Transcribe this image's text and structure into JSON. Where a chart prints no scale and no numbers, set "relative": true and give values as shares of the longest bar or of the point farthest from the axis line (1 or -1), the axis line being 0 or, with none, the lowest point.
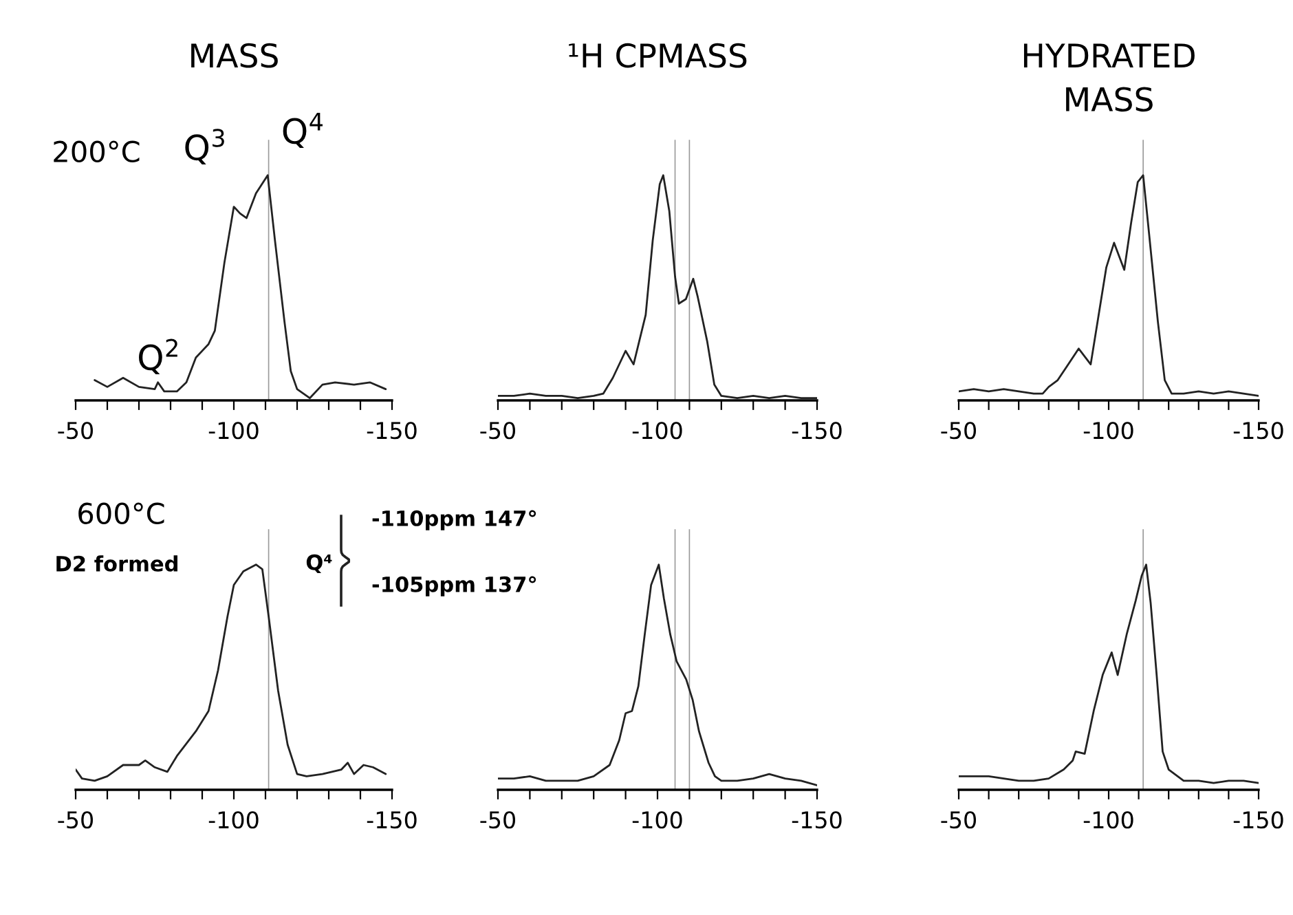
{
  "chart_data": [
    {
      "type": "line",
      "title": "MASS",
      "relative": true,
      "xlim": [
        -50,
        -150
      ],
      "tick_labels": "x",
      "xticks": [
        -50,
        {
          "value": -60,
          "label": null
        },
        {
          "value": -70,
          "label": null
        },
        {
          "value": -80,
          "label": null
        },
        {
          "value": -90,
          "label": null
        },
        -100,
        {
          "value": -110,
          "label": null
        },
        {
          "value": -120,
          "label": null
        },
        {
          "value": -130,
          "label": null
        },
        {
          "value": -140,
          "label": null
        },
        -150
      ],
      "ref_lines": [
        {
          "axis": "x",
          "value": -111
        }
      ],
      "annotations": [
        "200°C",
        {
          "text": "Q$^{2}$",
          "x": -92,
          "y": 0.25
        },
        {
          "text": "Q$^{3}$",
          "x": -100,
          "y": 0.86
        },
        {
          "text": "Q$^{4}$",
          "x": -111,
          "y": 1.0
        }
      ],
      "series": [
        {
          "color": "#222222",
          "x": [
            -56,
            -60,
            -65,
            -70,
            -75,
            -76,
            -78,
            -82,
            -85,
            -88,
            -92,
            -94,
            -97,
            -100,
            -102,
            -104,
            -107,
            -110.7,
            -113,
            -116,
            -118,
            -120,
            -124,
            -128,
            -132,
            -138,
            -143,
            -148
          ],
          "values": [
            0.09,
            0.06,
            0.1,
            0.06,
            0.05,
            0.08,
            0.04,
            0.04,
            0.08,
            0.19,
            0.25,
            0.31,
            0.61,
            0.86,
            0.83,
            0.81,
            0.92,
            1.0,
            0.71,
            0.35,
            0.13,
            0.05,
            0.01,
            0.07,
            0.08,
            0.07,
            0.08,
            0.05
          ]
        }
      ]
    },
    {
      "type": "line",
      "title": "¹H CPMASS",
      "relative": true,
      "xlim": [
        -50,
        -150
      ],
      "tick_labels": "x",
      "xticks": [
        -50,
        {
          "value": -60,
          "label": null
        },
        {
          "value": -70,
          "label": null
        },
        {
          "value": -80,
          "label": null
        },
        {
          "value": -90,
          "label": null
        },
        -100,
        {
          "value": -110,
          "label": null
        },
        {
          "value": -120,
          "label": null
        },
        {
          "value": -130,
          "label": null
        },
        {
          "value": -140,
          "label": null
        },
        -150
      ],
      "ref_lines": [
        {
          "axis": "x",
          "value": -105.5
        },
        {
          "axis": "x",
          "value": -110
        }
      ],
      "series": [
        {
          "color": "#222222",
          "x": [
            -50,
            -55,
            -60,
            -65,
            -70,
            -75,
            -80,
            -83,
            -86,
            -90,
            -92.5,
            -96.3,
            -98.5,
            -100.7,
            -101.8,
            -103.7,
            -105.5,
            -106.7,
            -108.9,
            -111.2,
            -112.6,
            -115.6,
            -117.8,
            -120,
            -125,
            -130,
            -135,
            -140,
            -145,
            -150
          ],
          "values": [
            0.02,
            0.02,
            0.03,
            0.02,
            0.02,
            0.01,
            0.02,
            0.03,
            0.1,
            0.22,
            0.16,
            0.38,
            0.71,
            0.96,
            1.0,
            0.84,
            0.55,
            0.43,
            0.45,
            0.54,
            0.46,
            0.26,
            0.07,
            0.02,
            0.01,
            0.02,
            0.01,
            0.02,
            0.01,
            0.01
          ]
        }
      ]
    },
    {
      "type": "line",
      "title": "HYDRATED\nMASS",
      "relative": true,
      "xlim": [
        -50,
        -150
      ],
      "tick_labels": "x",
      "xticks": [
        -50,
        {
          "value": -60,
          "label": null
        },
        {
          "value": -70,
          "label": null
        },
        {
          "value": -80,
          "label": null
        },
        {
          "value": -90,
          "label": null
        },
        -100,
        {
          "value": -110,
          "label": null
        },
        {
          "value": -120,
          "label": null
        },
        {
          "value": -130,
          "label": null
        },
        {
          "value": -140,
          "label": null
        },
        -150
      ],
      "ref_lines": [
        {
          "axis": "x",
          "value": -111.5
        }
      ],
      "series": [
        {
          "color": "#222222",
          "x": [
            -50,
            -55,
            -60,
            -65,
            -70,
            -75,
            -78,
            -80,
            -83,
            -86,
            -90,
            -94,
            -96.3,
            -99.2,
            -101.8,
            -105.2,
            -107.5,
            -109.7,
            -111.5,
            -113.4,
            -116.4,
            -118.7,
            -121,
            -125,
            -130,
            -135,
            -140,
            -145,
            -150
          ],
          "values": [
            0.04,
            0.05,
            0.04,
            0.05,
            0.04,
            0.03,
            0.03,
            0.06,
            0.09,
            0.15,
            0.23,
            0.16,
            0.35,
            0.59,
            0.7,
            0.58,
            0.79,
            0.97,
            1.0,
            0.75,
            0.35,
            0.09,
            0.03,
            0.03,
            0.04,
            0.03,
            0.04,
            0.03,
            0.02
          ]
        }
      ]
    },
    {
      "type": "line",
      "relative": true,
      "xlim": [
        -50,
        -150
      ],
      "tick_labels": "x",
      "xticks": [
        -50,
        {
          "value": -60,
          "label": null
        },
        {
          "value": -70,
          "label": null
        },
        {
          "value": -80,
          "label": null
        },
        {
          "value": -90,
          "label": null
        },
        -100,
        {
          "value": -110,
          "label": null
        },
        {
          "value": -120,
          "label": null
        },
        {
          "value": -130,
          "label": null
        },
        {
          "value": -140,
          "label": null
        },
        -150
      ],
      "ref_lines": [
        {
          "axis": "x",
          "value": -111
        }
      ],
      "annotations": [
        "600°C",
        "D2 formed",
        "Q⁴",
        "-110ppm 147°",
        "-105ppm 137°"
      ],
      "series": [
        {
          "color": "#222222",
          "x": [
            -50,
            -52,
            -56,
            -60,
            -65,
            -70,
            -72,
            -75,
            -79,
            -82,
            -88,
            -92,
            -95,
            -98,
            -100,
            -103,
            -107,
            -109,
            -111,
            -114,
            -117,
            -120,
            -123,
            -128,
            -131,
            -134,
            -136,
            -138,
            -141,
            -144,
            -148
          ],
          "values": [
            0.09,
            0.05,
            0.04,
            0.06,
            0.11,
            0.11,
            0.13,
            0.1,
            0.08,
            0.15,
            0.26,
            0.35,
            0.53,
            0.77,
            0.91,
            0.97,
            1.0,
            0.98,
            0.77,
            0.44,
            0.2,
            0.07,
            0.06,
            0.07,
            0.08,
            0.09,
            0.12,
            0.07,
            0.11,
            0.1,
            0.07
          ]
        }
      ]
    },
    {
      "type": "line",
      "relative": true,
      "xlim": [
        -50,
        -150
      ],
      "tick_labels": "x",
      "xticks": [
        -50,
        {
          "value": -60,
          "label": null
        },
        {
          "value": -70,
          "label": null
        },
        {
          "value": -80,
          "label": null
        },
        {
          "value": -90,
          "label": null
        },
        -100,
        {
          "value": -110,
          "label": null
        },
        {
          "value": -120,
          "label": null
        },
        {
          "value": -130,
          "label": null
        },
        {
          "value": -140,
          "label": null
        },
        -150
      ],
      "ref_lines": [
        {
          "axis": "x",
          "value": -105.5
        },
        {
          "axis": "x",
          "value": -110
        }
      ],
      "series": [
        {
          "color": "#222222",
          "x": [
            -50,
            -55,
            -60,
            -65,
            -70,
            -75,
            -80,
            -85,
            -88,
            -90,
            -92,
            -94,
            -96,
            -98,
            -100.4,
            -102,
            -104,
            -106,
            -109,
            -111,
            -113,
            -116,
            -118,
            -120,
            -125,
            -130,
            -135,
            -140,
            -145,
            -150
          ],
          "values": [
            0.05,
            0.05,
            0.06,
            0.04,
            0.04,
            0.04,
            0.06,
            0.11,
            0.22,
            0.34,
            0.35,
            0.46,
            0.69,
            0.91,
            1.0,
            0.85,
            0.69,
            0.57,
            0.49,
            0.4,
            0.26,
            0.12,
            0.06,
            0.04,
            0.04,
            0.05,
            0.07,
            0.05,
            0.04,
            0.02
          ]
        }
      ]
    },
    {
      "type": "line",
      "relative": true,
      "xlim": [
        -50,
        -150
      ],
      "tick_labels": "x",
      "xticks": [
        -50,
        {
          "value": -60,
          "label": null
        },
        {
          "value": -70,
          "label": null
        },
        {
          "value": -80,
          "label": null
        },
        {
          "value": -90,
          "label": null
        },
        -100,
        {
          "value": -110,
          "label": null
        },
        {
          "value": -120,
          "label": null
        },
        {
          "value": -130,
          "label": null
        },
        {
          "value": -140,
          "label": null
        },
        -150
      ],
      "ref_lines": [
        {
          "axis": "x",
          "value": -111.5
        }
      ],
      "series": [
        {
          "color": "#222222",
          "x": [
            -50,
            -55,
            -60,
            -65,
            -70,
            -75,
            -80,
            -85,
            -88,
            -89,
            -92,
            -95,
            -98,
            -101,
            -103,
            -106,
            -109,
            -111,
            -112.5,
            -114,
            -116,
            -118,
            -120,
            -125,
            -130,
            -135,
            -140,
            -145,
            -150
          ],
          "values": [
            0.06,
            0.06,
            0.06,
            0.05,
            0.04,
            0.04,
            0.05,
            0.09,
            0.13,
            0.17,
            0.16,
            0.35,
            0.51,
            0.61,
            0.51,
            0.69,
            0.84,
            0.95,
            1.0,
            0.83,
            0.51,
            0.17,
            0.09,
            0.04,
            0.04,
            0.03,
            0.04,
            0.04,
            0.03
          ]
        }
      ]
    }
  ]
}
